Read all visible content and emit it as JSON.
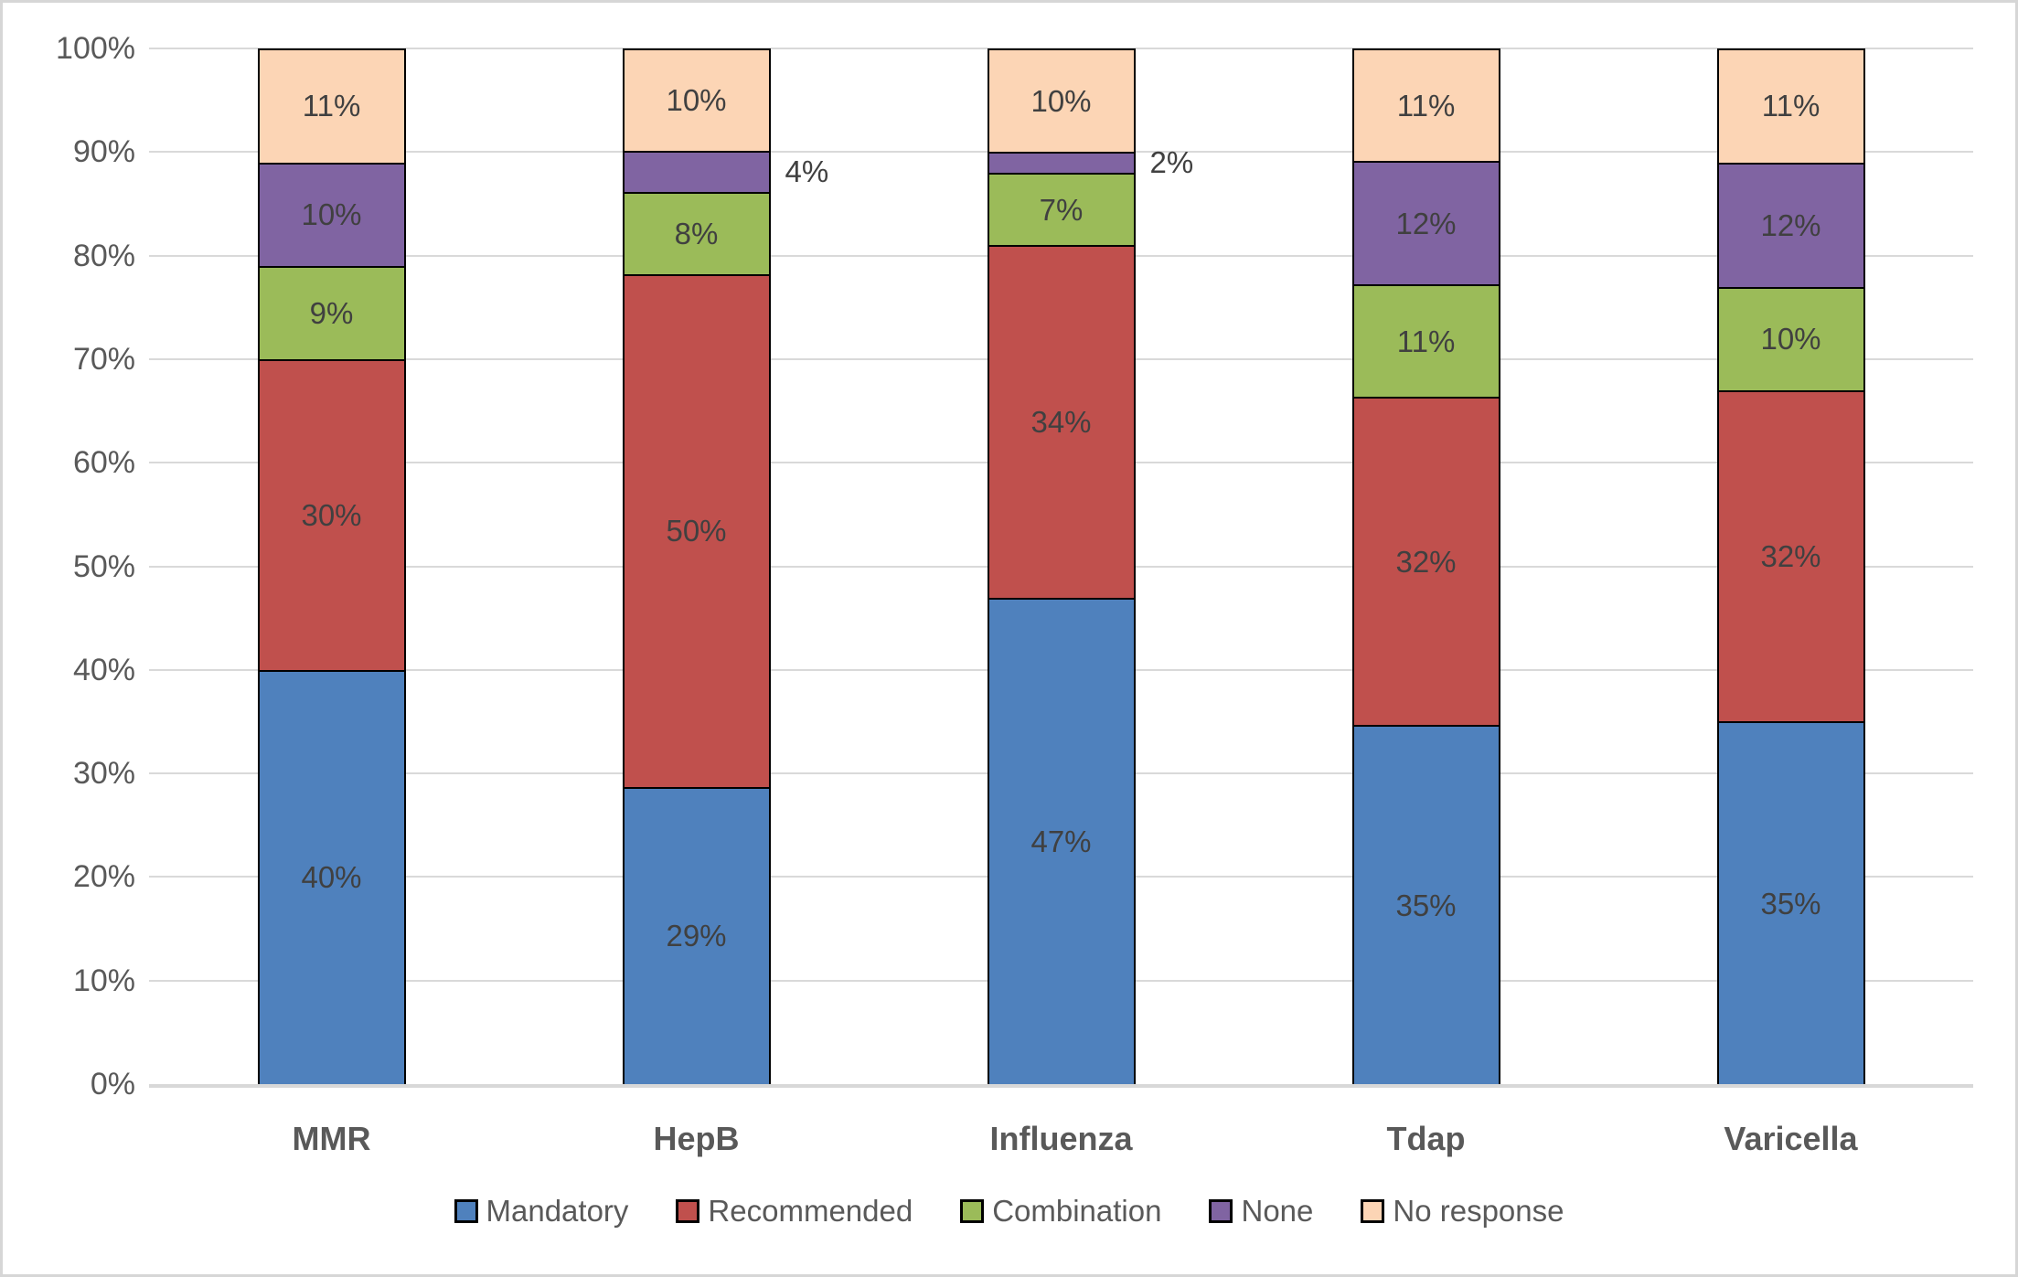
{
  "chart_data": {
    "type": "bar",
    "stacked": "100%",
    "title": "",
    "xlabel": "",
    "ylabel": "",
    "grid": true,
    "categories": [
      "MMR",
      "HepB",
      "Influenza",
      "Tdap",
      "Varicella"
    ],
    "series": [
      {
        "name": "Mandatory",
        "color": "#4F81BD",
        "values": [
          40,
          29,
          47,
          35,
          35
        ],
        "labels": [
          "40%",
          "29%",
          "47%",
          "35%",
          "35%"
        ],
        "label_position": [
          "inside",
          "inside",
          "inside",
          "inside",
          "inside"
        ]
      },
      {
        "name": "Recommended",
        "color": "#C0504D",
        "values": [
          30,
          50,
          34,
          32,
          32
        ],
        "labels": [
          "30%",
          "50%",
          "34%",
          "32%",
          "32%"
        ],
        "label_position": [
          "inside",
          "inside",
          "inside",
          "inside",
          "inside"
        ]
      },
      {
        "name": "Combination",
        "color": "#9BBB59",
        "values": [
          9,
          8,
          7,
          11,
          10
        ],
        "labels": [
          "9%",
          "8%",
          "7%",
          "11%",
          "10%"
        ],
        "label_position": [
          "inside",
          "inside",
          "inside",
          "inside",
          "inside"
        ]
      },
      {
        "name": "None",
        "color": "#8064A2",
        "values": [
          10,
          4,
          2,
          12,
          12
        ],
        "labels": [
          "10%",
          "4%",
          "2%",
          "12%",
          "12%"
        ],
        "label_position": [
          "inside",
          "outside",
          "outside",
          "inside",
          "inside"
        ]
      },
      {
        "name": "No response",
        "color": "#FCD5B5",
        "values": [
          11,
          10,
          10,
          11,
          11
        ],
        "labels": [
          "11%",
          "10%",
          "10%",
          "11%",
          "11%"
        ],
        "label_position": [
          "inside",
          "inside",
          "inside",
          "inside",
          "inside"
        ]
      }
    ],
    "y_axis": {
      "min": 0,
      "max": 100,
      "step": 10,
      "tick_labels": [
        "0%",
        "10%",
        "20%",
        "30%",
        "40%",
        "50%",
        "60%",
        "70%",
        "80%",
        "90%",
        "100%"
      ]
    },
    "legend": {
      "position": "bottom",
      "entries": [
        "Mandatory",
        "Recommended",
        "Combination",
        "None",
        "No response"
      ]
    },
    "colors": {
      "gridline": "#D9D9D9",
      "axis_line": "#D8D8D8",
      "tick_label": "#595959",
      "data_label": "#404040",
      "category_label": "#595959",
      "segment_border": "#000000",
      "frame_border": "#D6D6D6",
      "background": "#FFFFFF"
    }
  }
}
